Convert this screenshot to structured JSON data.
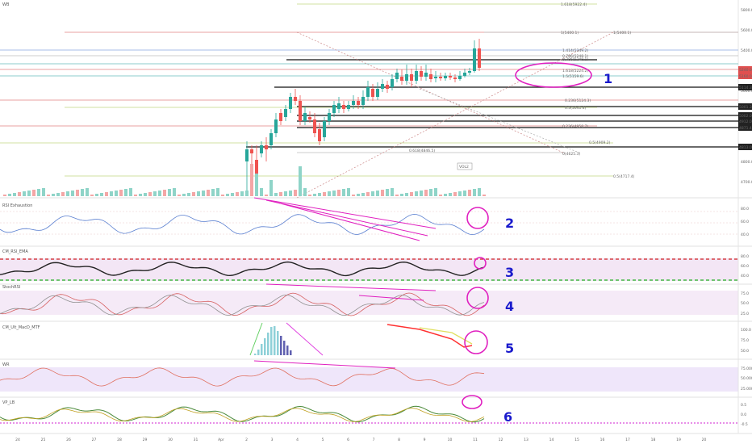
{
  "panes": [
    {
      "id": "main",
      "title": "WB"
    },
    {
      "id": "rsi",
      "title": "RSI Exhaustion"
    },
    {
      "id": "cm_rsi",
      "title": "CM_RSI_EMA"
    },
    {
      "id": "stoch",
      "title": "StochRSI"
    },
    {
      "id": "macd",
      "title": "CM_Ult_MacD_MTF"
    },
    {
      "id": "wr",
      "title": "WR"
    },
    {
      "id": "vp",
      "title": "VP_LB"
    }
  ],
  "price_axis": [
    "5800.0",
    "5600.0",
    "5400.0",
    "5200.0",
    "5000.0",
    "4800.0",
    "4700.0"
  ],
  "price_tags": [
    {
      "text": "5240.0",
      "color": "#e05050"
    },
    {
      "text": "5160.0",
      "color": "#e05050"
    },
    {
      "text": "5114.3",
      "color": "#222222"
    },
    {
      "text": "5001.3",
      "color": "#222222"
    },
    {
      "text": "5002.0",
      "color": "#222222"
    },
    {
      "text": "4912.0",
      "color": "#222222"
    },
    {
      "text": "4871.4",
      "color": "#222222"
    },
    {
      "text": "4813.0",
      "color": "#222222"
    }
  ],
  "fib_labels": [
    {
      "text": "1.618(5922.4)",
      "color": "#a0c060"
    },
    {
      "text": "1(5400.1)",
      "color": "#d04040"
    },
    {
      "text": "1(5400.1)",
      "color": "#888888"
    },
    {
      "text": "1.414(5349.2)",
      "color": "#5577cc"
    },
    {
      "text": "0.786(5248.1)",
      "color": "#888888"
    },
    {
      "text": "0.786(5248.1)",
      "color": "#333333"
    },
    {
      "text": "1.618(5224.2)",
      "color": "#40a0a0"
    },
    {
      "text": "1.5(5159.6)",
      "color": "#40a0a0"
    },
    {
      "text": "0.236(5124.3)",
      "color": "#d04040"
    },
    {
      "text": "0.5(5041.4)",
      "color": "#a0c060"
    },
    {
      "text": "0.236(4958.7)",
      "color": "#d04040"
    },
    {
      "text": "0.5(4909.2)",
      "color": "#a0c060"
    },
    {
      "text": "0.618(4846.5)",
      "color": "#a0c060"
    },
    {
      "text": "0(4625.3)",
      "color": "#888888"
    },
    {
      "text": "0.5(4717.4)",
      "color": "#a0c060"
    }
  ],
  "vol_tag": "VOL2",
  "indicator_axes": {
    "rsi": [
      "80.0",
      "60.0",
      "40.0"
    ],
    "cm_rsi": [
      "80.0",
      "60.0",
      "40.0"
    ],
    "stoch": [
      "75.0",
      "50.0",
      "25.0"
    ],
    "macd": [
      "100.0",
      "75.0",
      "50.0"
    ],
    "wr": [
      "75.000",
      "50.000",
      "25.000"
    ],
    "vp": [
      "0.5",
      "0.0",
      "-0.5"
    ]
  },
  "x_axis": [
    "24",
    "25",
    "26",
    "27",
    "28",
    "29",
    "30",
    "31",
    "Apr",
    "2",
    "3",
    "4",
    "5",
    "6",
    "7",
    "8",
    "9",
    "10",
    "11",
    "12",
    "13",
    "14",
    "15",
    "16",
    "17",
    "18",
    "19",
    "20"
  ],
  "annotations": [
    "1",
    "2",
    "3",
    "4",
    "5",
    "6"
  ],
  "colors": {
    "up": "#26a69a",
    "down": "#ef5350",
    "marker": "#e020c0",
    "annotation": "#1a1acc"
  }
}
